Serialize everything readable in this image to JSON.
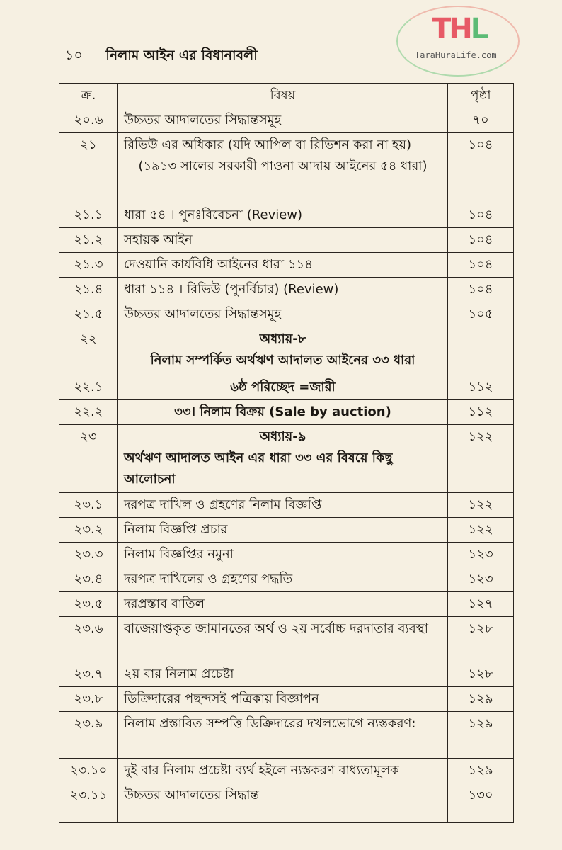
{
  "running_head": {
    "page_number": "১০",
    "title": "নিলাম আইন এর বিধানাবলী"
  },
  "table": {
    "headers": [
      "ক্র.",
      "বিষয়",
      "পৃষ্ঠা"
    ],
    "rows": [
      {
        "no": "২০.৬",
        "lines": [
          "উচ্চতর আদালতের সিদ্ধান্তসমূহ"
        ],
        "page": "৭০"
      },
      {
        "no": "২১",
        "lines": [
          "রিভিউ এর অধিকার (যদি আপিল বা রিভিশন করা না হয়)"
        ],
        "sub": "(১৯১৩ সালের সরকারী পাওনা আদায় আইনের ৫৪ ধারা)",
        "page": "১০৪"
      },
      {
        "no": "২১.১",
        "lines": [
          "ধারা ৫৪ । পুনঃবিবেচনা (Review)"
        ],
        "page": "১০৪"
      },
      {
        "no": "২১.২",
        "lines": [
          "সহায়ক আইন"
        ],
        "page": "১০৪"
      },
      {
        "no": "২১.৩",
        "lines": [
          "দেওয়ানি কার্যবিধি আইনের ধারা ১১৪"
        ],
        "page": "১০৪"
      },
      {
        "no": "২১.৪",
        "lines": [
          "ধারা ১১৪ । রিভিউ (পুনর্বিচার) (Review)"
        ],
        "page": "১০৪"
      },
      {
        "no": "২১.৫",
        "lines": [
          "উচ্চতর আদালতের সিদ্ধান্তসমূহ"
        ],
        "page": "১০৫"
      },
      {
        "no": "২২",
        "center": [
          "অধ্যায়-৮",
          "নিলাম সম্পর্কিত অর্থঋণ আদালত আইনের ৩৩ ধারা"
        ],
        "page": ""
      },
      {
        "no": "২২.১",
        "center": [
          "৬ষ্ঠ পরিচ্ছেদ =জারী"
        ],
        "page": "১১২"
      },
      {
        "no": "২২.২",
        "center": [
          "৩৩। নিলাম বিক্রয় (Sale by auction)"
        ],
        "page": "১১২"
      },
      {
        "no": "২৩",
        "center": [
          "অধ্যায়-৯"
        ],
        "lines": [
          "অর্থঋণ আদালত আইন এর ধারা ৩৩ এর বিষয়ে কিছু আলোচনা"
        ],
        "page": "১২২"
      },
      {
        "no": "২৩.১",
        "lines": [
          "দরপত্র দাখিল ও গ্রহণের নিলাম বিজ্ঞপ্তি"
        ],
        "page": "১২২"
      },
      {
        "no": "২৩.২",
        "lines": [
          "নিলাম বিজ্ঞপ্তি প্রচার"
        ],
        "page": "১২২"
      },
      {
        "no": "২৩.৩",
        "lines": [
          "নিলাম বিজ্ঞপ্তির নমুনা"
        ],
        "page": "১২৩"
      },
      {
        "no": "২৩.৪",
        "lines": [
          "দরপত্র দাখিলের ও গ্রহণের পদ্ধতি"
        ],
        "page": "১২৩"
      },
      {
        "no": "২৩.৫",
        "lines": [
          "দরপ্রস্তাব বাতিল"
        ],
        "page": "১২৭"
      },
      {
        "no": "২৩.৬",
        "lines": [
          "বাজেয়াপ্তকৃত জামানতের অর্থ ও ২য় সর্বোচ্চ দরদাতার ব্যবস্থা"
        ],
        "page": "১২৮"
      },
      {
        "no": "২৩.৭",
        "lines": [
          "২য় বার নিলাম প্রচেষ্টা"
        ],
        "page": "১২৮"
      },
      {
        "no": "২৩.৮",
        "lines": [
          "ডিক্রিদারের পছন্দসই পত্রিকায় বিজ্ঞাপন"
        ],
        "page": "১২৯"
      },
      {
        "no": "২৩.৯",
        "lines": [
          "নিলাম প্রস্তাবিত সম্পত্তি ডিক্রিদারের দখলভোগে ন্যস্তকরণ:"
        ],
        "page": "১২৯"
      },
      {
        "no": "২৩.১০",
        "lines": [
          "দুই বার নিলাম প্রচেষ্টা ব্যর্থ হইলে ন্যস্তকরণ বাধ্যতামূলক"
        ],
        "page": "১২৯"
      },
      {
        "no": "২৩.১১",
        "lines": [
          "উচ্চতর আদালতের সিদ্ধান্ত"
        ],
        "page": "১৩০"
      }
    ]
  },
  "watermark": {
    "logo_text": "THL",
    "url": "TaraHuraLife.com",
    "colors": {
      "red": "#e0283c",
      "green": "#28aa50"
    }
  }
}
